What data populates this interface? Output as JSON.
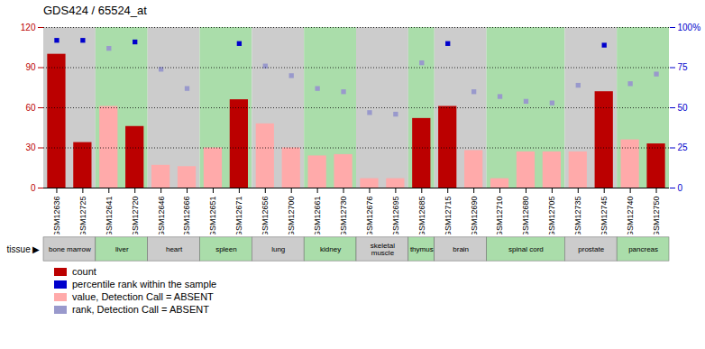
{
  "chart_data": {
    "type": "bar",
    "title": "GDS424 / 65524_at",
    "categories": [
      "GSM12636",
      "GSM12725",
      "GSM12641",
      "GSM12720",
      "GSM12646",
      "GSM12666",
      "GSM12651",
      "GSM12671",
      "GSM12656",
      "GSM12700",
      "GSM12661",
      "GSM12730",
      "GSM12676",
      "GSM12695",
      "GSM12685",
      "GSM12715",
      "GSM12690",
      "GSM12710",
      "GSM12680",
      "GSM12705",
      "GSM12735",
      "GSM12745",
      "GSM12740",
      "GSM12750"
    ],
    "ylim": [
      0,
      120
    ],
    "yticks": [
      0,
      30,
      60,
      90,
      120
    ],
    "y2lim": [
      0,
      100
    ],
    "y2ticks": [
      0,
      25,
      50,
      75,
      {
        "value": 100,
        "label": "100%"
      }
    ],
    "grid": true,
    "legend": "bottom",
    "series": [
      {
        "name": "count",
        "type": "bar",
        "color": "#bb0000",
        "values": [
          100,
          34,
          0,
          46,
          0,
          0,
          0,
          66,
          0,
          0,
          0,
          0,
          0,
          0,
          52,
          61,
          0,
          0,
          0,
          0,
          0,
          72,
          0,
          33
        ]
      },
      {
        "name": "percentile rank within the sample",
        "type": "scatter",
        "marker": "square",
        "axis": "y2",
        "color": "#0000cc",
        "values": [
          92,
          92,
          null,
          91,
          null,
          null,
          null,
          90,
          null,
          null,
          null,
          null,
          null,
          null,
          null,
          90,
          null,
          null,
          null,
          null,
          null,
          89,
          null,
          null
        ]
      },
      {
        "name": "value, Detection Call = ABSENT",
        "type": "bar",
        "color": "#ffaaaa",
        "values": [
          0,
          0,
          61,
          0,
          17,
          16,
          30,
          0,
          48,
          30,
          24,
          25,
          7,
          7,
          0,
          0,
          28,
          7,
          27,
          27,
          27,
          0,
          36,
          0
        ]
      },
      {
        "name": "rank, Detection Call = ABSENT",
        "type": "scatter",
        "marker": "square",
        "axis": "y2",
        "color": "#9999cc",
        "values": [
          null,
          null,
          87,
          null,
          74,
          62,
          null,
          null,
          76,
          70,
          62,
          60,
          47,
          46,
          78,
          null,
          60,
          57,
          54,
          53,
          64,
          null,
          65,
          71
        ]
      }
    ],
    "group_label": "tissue ▶",
    "groups": [
      {
        "name": "bone marrow",
        "span": [
          0,
          2
        ],
        "color": "#cccccc"
      },
      {
        "name": "liver",
        "span": [
          2,
          4
        ],
        "color": "#aaddaa"
      },
      {
        "name": "heart",
        "span": [
          4,
          6
        ],
        "color": "#cccccc"
      },
      {
        "name": "spleen",
        "span": [
          6,
          8
        ],
        "color": "#aaddaa"
      },
      {
        "name": "lung",
        "span": [
          8,
          10
        ],
        "color": "#cccccc"
      },
      {
        "name": "kidney",
        "span": [
          10,
          12
        ],
        "color": "#aaddaa"
      },
      {
        "name": "skeletal muscle",
        "span": [
          12,
          14
        ],
        "color": "#cccccc"
      },
      {
        "name": "thymus",
        "span": [
          14,
          15
        ],
        "color": "#aaddaa"
      },
      {
        "name": "brain",
        "span": [
          15,
          17
        ],
        "color": "#cccccc"
      },
      {
        "name": "spinal cord",
        "span": [
          17,
          20
        ],
        "color": "#aaddaa"
      },
      {
        "name": "prostate",
        "span": [
          20,
          22
        ],
        "color": "#cccccc"
      },
      {
        "name": "pancreas",
        "span": [
          22,
          24
        ],
        "color": "#aaddaa"
      }
    ]
  }
}
